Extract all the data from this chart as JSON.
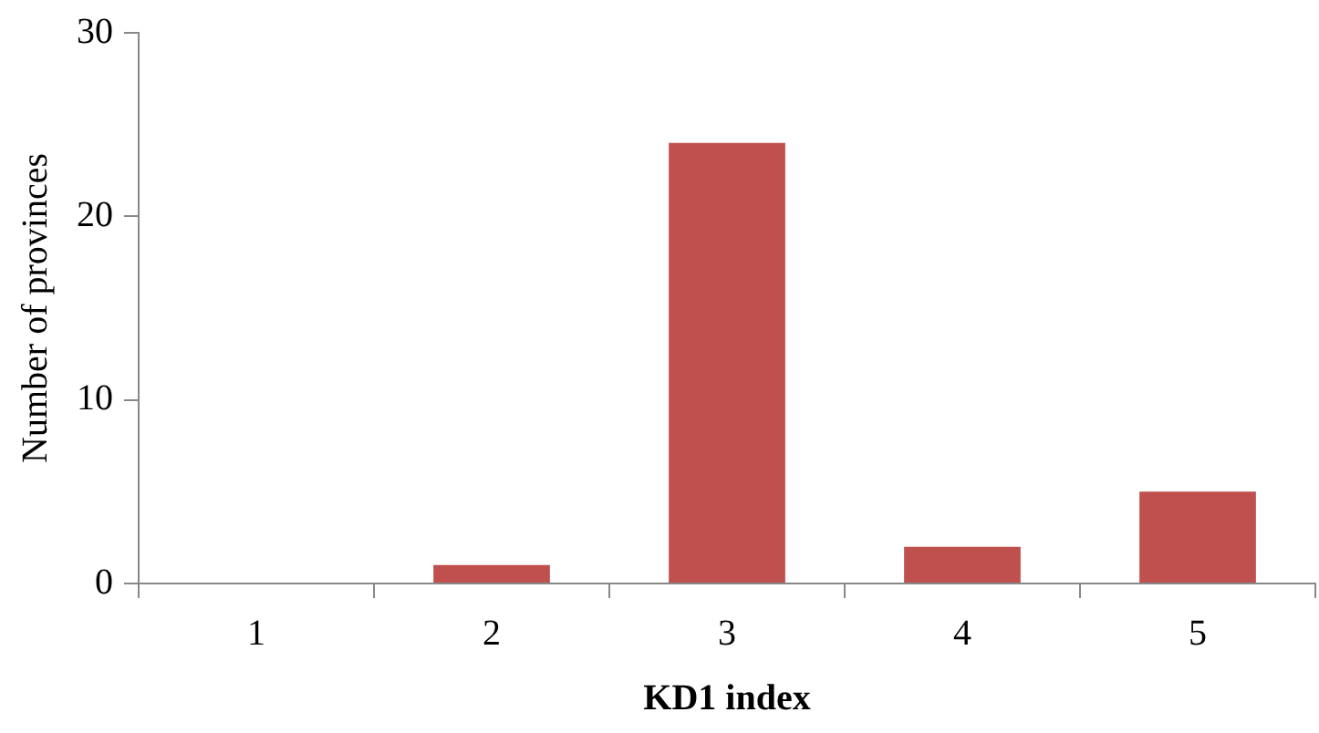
{
  "chart_data": {
    "type": "bar",
    "xlabel": "KD1 index",
    "ylabel": "Number of provinces",
    "categories": [
      "1",
      "2",
      "3",
      "4",
      "5"
    ],
    "values": [
      0,
      1,
      24,
      2,
      5
    ],
    "color": "#c0504d",
    "ylim": [
      0,
      30
    ],
    "yticks": [
      0,
      10,
      20,
      30
    ],
    "grid": false,
    "legend": false
  }
}
